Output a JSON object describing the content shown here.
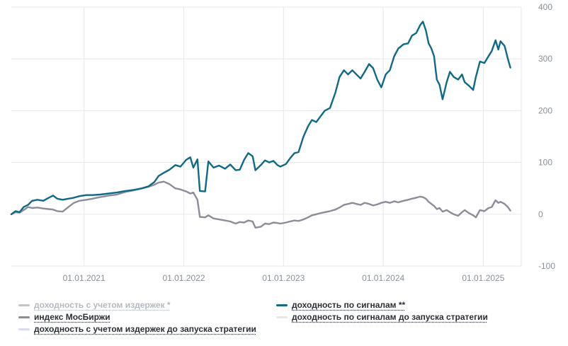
{
  "chart_data": {
    "type": "line",
    "y_ticks": [
      400,
      300,
      200,
      100,
      0,
      -100
    ],
    "ylim": [
      -100,
      400
    ],
    "x_ticks": [
      "01.01.2021",
      "01.01.2022",
      "01.01.2023",
      "01.01.2024",
      "01.01.2025"
    ],
    "xlim": [
      "2020-04-10",
      "2025-05-20"
    ],
    "grid": true,
    "legend_position": "bottom",
    "series": [
      {
        "name": "доходность по сигналам **",
        "color": "#0e6a87",
        "points": [
          [
            "2020-04-10",
            0
          ],
          [
            "2020-04-25",
            6
          ],
          [
            "2020-05-10",
            4
          ],
          [
            "2020-05-25",
            14
          ],
          [
            "2020-06-10",
            18
          ],
          [
            "2020-06-25",
            26
          ],
          [
            "2020-07-15",
            28
          ],
          [
            "2020-08-05",
            26
          ],
          [
            "2020-08-25",
            32
          ],
          [
            "2020-09-10",
            36
          ],
          [
            "2020-09-25",
            30
          ],
          [
            "2020-10-15",
            28
          ],
          [
            "2020-11-05",
            30
          ],
          [
            "2020-11-25",
            32
          ],
          [
            "2020-12-15",
            35
          ],
          [
            "2021-01-10",
            37
          ],
          [
            "2021-02-01",
            37
          ],
          [
            "2021-03-01",
            38
          ],
          [
            "2021-04-01",
            40
          ],
          [
            "2021-05-01",
            42
          ],
          [
            "2021-06-01",
            45
          ],
          [
            "2021-07-01",
            47
          ],
          [
            "2021-08-01",
            50
          ],
          [
            "2021-08-25",
            54
          ],
          [
            "2021-09-15",
            62
          ],
          [
            "2021-10-01",
            74
          ],
          [
            "2021-10-20",
            80
          ],
          [
            "2021-11-10",
            86
          ],
          [
            "2021-12-01",
            95
          ],
          [
            "2021-12-20",
            92
          ],
          [
            "2022-01-10",
            105
          ],
          [
            "2022-01-25",
            110
          ],
          [
            "2022-02-05",
            90
          ],
          [
            "2022-02-20",
            106
          ],
          [
            "2022-03-01",
            45
          ],
          [
            "2022-03-20",
            44
          ],
          [
            "2022-04-01",
            102
          ],
          [
            "2022-04-20",
            90
          ],
          [
            "2022-05-10",
            94
          ],
          [
            "2022-06-01",
            88
          ],
          [
            "2022-06-20",
            96
          ],
          [
            "2022-07-10",
            85
          ],
          [
            "2022-07-25",
            86
          ],
          [
            "2022-08-10",
            105
          ],
          [
            "2022-08-25",
            118
          ],
          [
            "2022-09-10",
            112
          ],
          [
            "2022-09-20",
            85
          ],
          [
            "2022-10-10",
            95
          ],
          [
            "2022-10-25",
            104
          ],
          [
            "2022-11-10",
            100
          ],
          [
            "2022-11-25",
            103
          ],
          [
            "2022-12-10",
            95
          ],
          [
            "2022-12-20",
            92
          ],
          [
            "2023-01-10",
            97
          ],
          [
            "2023-01-25",
            108
          ],
          [
            "2023-02-10",
            118
          ],
          [
            "2023-02-25",
            120
          ],
          [
            "2023-03-15",
            150
          ],
          [
            "2023-04-01",
            170
          ],
          [
            "2023-04-15",
            182
          ],
          [
            "2023-05-01",
            178
          ],
          [
            "2023-05-15",
            188
          ],
          [
            "2023-06-01",
            200
          ],
          [
            "2023-06-20",
            205
          ],
          [
            "2023-07-10",
            235
          ],
          [
            "2023-07-25",
            265
          ],
          [
            "2023-08-10",
            278
          ],
          [
            "2023-08-25",
            270
          ],
          [
            "2023-09-10",
            278
          ],
          [
            "2023-09-25",
            270
          ],
          [
            "2023-10-10",
            262
          ],
          [
            "2023-10-25",
            275
          ],
          [
            "2023-11-10",
            290
          ],
          [
            "2023-11-25",
            282
          ],
          [
            "2023-12-10",
            260
          ],
          [
            "2023-12-25",
            245
          ],
          [
            "2024-01-10",
            270
          ],
          [
            "2024-01-25",
            278
          ],
          [
            "2024-02-10",
            305
          ],
          [
            "2024-02-25",
            320
          ],
          [
            "2024-03-15",
            328
          ],
          [
            "2024-04-01",
            330
          ],
          [
            "2024-04-15",
            345
          ],
          [
            "2024-05-01",
            350
          ],
          [
            "2024-05-15",
            365
          ],
          [
            "2024-05-25",
            372
          ],
          [
            "2024-06-05",
            355
          ],
          [
            "2024-06-15",
            330
          ],
          [
            "2024-06-25",
            320
          ],
          [
            "2024-07-05",
            305
          ],
          [
            "2024-07-15",
            260
          ],
          [
            "2024-07-25",
            250
          ],
          [
            "2024-08-05",
            222
          ],
          [
            "2024-08-20",
            255
          ],
          [
            "2024-09-01",
            275
          ],
          [
            "2024-09-15",
            265
          ],
          [
            "2024-10-01",
            260
          ],
          [
            "2024-10-15",
            270
          ],
          [
            "2024-10-25",
            255
          ],
          [
            "2024-11-10",
            248
          ],
          [
            "2024-11-25",
            240
          ],
          [
            "2024-12-05",
            265
          ],
          [
            "2024-12-20",
            295
          ],
          [
            "2025-01-05",
            292
          ],
          [
            "2025-01-20",
            305
          ],
          [
            "2025-02-01",
            315
          ],
          [
            "2025-02-15",
            336
          ],
          [
            "2025-02-25",
            318
          ],
          [
            "2025-03-05",
            334
          ],
          [
            "2025-03-20",
            325
          ],
          [
            "2025-04-01",
            300
          ],
          [
            "2025-04-10",
            283
          ]
        ]
      },
      {
        "name": "индекс МосБиржи",
        "color": "#8c8c9a",
        "points": [
          [
            "2020-04-10",
            0
          ],
          [
            "2020-04-25",
            4
          ],
          [
            "2020-05-10",
            3
          ],
          [
            "2020-05-25",
            8
          ],
          [
            "2020-06-10",
            14
          ],
          [
            "2020-06-25",
            12
          ],
          [
            "2020-07-15",
            13
          ],
          [
            "2020-08-05",
            11
          ],
          [
            "2020-08-25",
            10
          ],
          [
            "2020-09-10",
            9
          ],
          [
            "2020-09-25",
            6
          ],
          [
            "2020-10-15",
            5
          ],
          [
            "2020-11-05",
            14
          ],
          [
            "2020-11-25",
            22
          ],
          [
            "2020-12-15",
            26
          ],
          [
            "2021-01-10",
            28
          ],
          [
            "2021-02-01",
            30
          ],
          [
            "2021-03-01",
            33
          ],
          [
            "2021-04-01",
            36
          ],
          [
            "2021-05-01",
            38
          ],
          [
            "2021-06-01",
            43
          ],
          [
            "2021-07-01",
            46
          ],
          [
            "2021-08-01",
            50
          ],
          [
            "2021-08-25",
            53
          ],
          [
            "2021-09-15",
            57
          ],
          [
            "2021-10-01",
            61
          ],
          [
            "2021-10-20",
            63
          ],
          [
            "2021-11-10",
            58
          ],
          [
            "2021-12-01",
            50
          ],
          [
            "2021-12-20",
            48
          ],
          [
            "2022-01-10",
            44
          ],
          [
            "2022-01-25",
            40
          ],
          [
            "2022-02-05",
            42
          ],
          [
            "2022-02-20",
            28
          ],
          [
            "2022-03-01",
            -5
          ],
          [
            "2022-03-20",
            -6
          ],
          [
            "2022-04-01",
            -2
          ],
          [
            "2022-04-20",
            -8
          ],
          [
            "2022-05-10",
            -10
          ],
          [
            "2022-06-01",
            -12
          ],
          [
            "2022-06-20",
            -14
          ],
          [
            "2022-07-10",
            -18
          ],
          [
            "2022-07-25",
            -15
          ],
          [
            "2022-08-10",
            -16
          ],
          [
            "2022-08-25",
            -12
          ],
          [
            "2022-09-10",
            -14
          ],
          [
            "2022-09-20",
            -26
          ],
          [
            "2022-10-10",
            -24
          ],
          [
            "2022-10-25",
            -18
          ],
          [
            "2022-11-10",
            -19
          ],
          [
            "2022-11-25",
            -16
          ],
          [
            "2022-12-10",
            -17
          ],
          [
            "2022-12-20",
            -18
          ],
          [
            "2023-01-10",
            -16
          ],
          [
            "2023-01-25",
            -14
          ],
          [
            "2023-02-10",
            -12
          ],
          [
            "2023-02-25",
            -13
          ],
          [
            "2023-03-15",
            -10
          ],
          [
            "2023-04-01",
            -6
          ],
          [
            "2023-04-15",
            -2
          ],
          [
            "2023-05-01",
            0
          ],
          [
            "2023-05-15",
            2
          ],
          [
            "2023-06-01",
            4
          ],
          [
            "2023-06-20",
            6
          ],
          [
            "2023-07-10",
            9
          ],
          [
            "2023-07-25",
            13
          ],
          [
            "2023-08-10",
            18
          ],
          [
            "2023-08-25",
            20
          ],
          [
            "2023-09-10",
            22
          ],
          [
            "2023-09-25",
            20
          ],
          [
            "2023-10-10",
            18
          ],
          [
            "2023-10-25",
            22
          ],
          [
            "2023-11-10",
            20
          ],
          [
            "2023-11-25",
            17
          ],
          [
            "2023-12-10",
            19
          ],
          [
            "2023-12-25",
            22
          ],
          [
            "2024-01-10",
            24
          ],
          [
            "2024-01-25",
            22
          ],
          [
            "2024-02-10",
            25
          ],
          [
            "2024-02-25",
            23
          ],
          [
            "2024-03-15",
            26
          ],
          [
            "2024-04-01",
            28
          ],
          [
            "2024-04-15",
            30
          ],
          [
            "2024-05-01",
            32
          ],
          [
            "2024-05-15",
            34
          ],
          [
            "2024-05-25",
            33
          ],
          [
            "2024-06-05",
            30
          ],
          [
            "2024-06-15",
            24
          ],
          [
            "2024-06-25",
            20
          ],
          [
            "2024-07-05",
            16
          ],
          [
            "2024-07-15",
            10
          ],
          [
            "2024-07-25",
            12
          ],
          [
            "2024-08-05",
            5
          ],
          [
            "2024-08-20",
            8
          ],
          [
            "2024-09-01",
            4
          ],
          [
            "2024-09-15",
            0
          ],
          [
            "2024-10-01",
            -3
          ],
          [
            "2024-10-15",
            4
          ],
          [
            "2024-10-25",
            8
          ],
          [
            "2024-11-10",
            2
          ],
          [
            "2024-11-25",
            -2
          ],
          [
            "2024-12-05",
            -6
          ],
          [
            "2024-12-20",
            8
          ],
          [
            "2025-01-05",
            6
          ],
          [
            "2025-01-20",
            12
          ],
          [
            "2025-02-01",
            14
          ],
          [
            "2025-02-15",
            27
          ],
          [
            "2025-02-25",
            22
          ],
          [
            "2025-03-05",
            24
          ],
          [
            "2025-03-20",
            20
          ],
          [
            "2025-04-01",
            14
          ],
          [
            "2025-04-10",
            7
          ]
        ]
      }
    ]
  },
  "legend": {
    "items": [
      {
        "key": "costs",
        "label": "доходность с учетом издержек *",
        "color": "#c4c4c4",
        "disabled": true
      },
      {
        "key": "signals",
        "label": "доходность по сигналам **",
        "color": "#0e6a87",
        "disabled": false
      },
      {
        "key": "moex",
        "label": "индекс МосБиржи",
        "color": "#8c8c9a",
        "disabled": false
      },
      {
        "key": "signals_pre",
        "label": "доходность по сигналам до запуска стратегии",
        "color": "#e3e7ee",
        "disabled": false
      },
      {
        "key": "costs_pre",
        "label": "доходность с учетом издержек до запуска стратегии",
        "color": "#d9dcf0",
        "disabled": false
      }
    ]
  }
}
